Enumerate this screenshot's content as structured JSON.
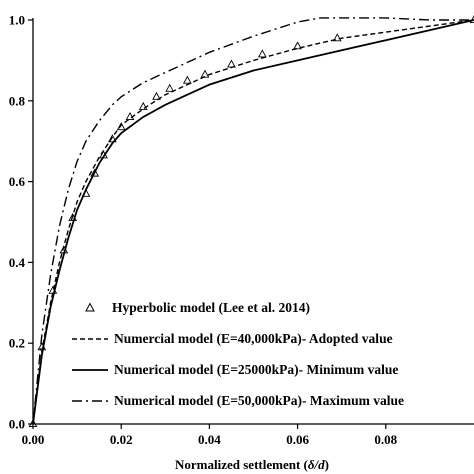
{
  "chart_data": {
    "type": "line",
    "title": "",
    "xlabel_parts": [
      "Normalized settlement (",
      "δ/d",
      ")"
    ],
    "ylabel": "",
    "xlim": [
      0,
      0.1
    ],
    "ylim": [
      0,
      1.0
    ],
    "x_ticks": [
      0,
      0.02,
      0.04,
      0.06,
      0.08
    ],
    "x_tick_labels": [
      "0.00",
      "0.02",
      "0.04",
      "0.06",
      "0.08"
    ],
    "y_ticks": [
      0,
      0.2,
      0.4,
      0.6,
      0.8,
      1.0
    ],
    "y_tick_labels": [
      "0.0",
      "0.2",
      "0.4",
      "0.6",
      "0.8",
      "1.0"
    ],
    "grid": false,
    "legend_position": "bottom-right",
    "series": [
      {
        "name": "Hyperbolic model (Lee et al. 2014)",
        "style": "triangle-markers",
        "x": [
          0,
          0.002,
          0.0045,
          0.007,
          0.009,
          0.012,
          0.014,
          0.016,
          0.018,
          0.02,
          0.022,
          0.025,
          0.028,
          0.031,
          0.035,
          0.039,
          0.045,
          0.052,
          0.06,
          0.069,
          0.1
        ],
        "y": [
          0,
          0.19,
          0.33,
          0.43,
          0.51,
          0.57,
          0.62,
          0.665,
          0.705,
          0.735,
          0.76,
          0.785,
          0.81,
          0.83,
          0.85,
          0.865,
          0.89,
          0.915,
          0.935,
          0.955,
          1.0
        ]
      },
      {
        "name": "Numercial model (E=40,000kPa)- Adopted value",
        "style": "dashed",
        "x": [
          0,
          0.002,
          0.004,
          0.006,
          0.008,
          0.01,
          0.012,
          0.015,
          0.018,
          0.02,
          0.025,
          0.03,
          0.035,
          0.04,
          0.05,
          0.06,
          0.07,
          0.08,
          0.09,
          0.1
        ],
        "y": [
          0,
          0.18,
          0.3,
          0.4,
          0.48,
          0.55,
          0.6,
          0.66,
          0.71,
          0.74,
          0.78,
          0.815,
          0.84,
          0.865,
          0.9,
          0.93,
          0.955,
          0.97,
          0.985,
          1.0
        ]
      },
      {
        "name": "Numerical model (E=25000kPa)- Minimum value",
        "style": "solid",
        "x": [
          0,
          0.002,
          0.004,
          0.006,
          0.008,
          0.01,
          0.012,
          0.015,
          0.018,
          0.02,
          0.025,
          0.03,
          0.035,
          0.04,
          0.05,
          0.06,
          0.07,
          0.08,
          0.09,
          0.1
        ],
        "y": [
          0,
          0.17,
          0.29,
          0.38,
          0.46,
          0.53,
          0.58,
          0.645,
          0.695,
          0.72,
          0.76,
          0.79,
          0.815,
          0.84,
          0.875,
          0.9,
          0.925,
          0.95,
          0.975,
          1.0
        ]
      },
      {
        "name": "Numerical model (E=50,000kPa)- Maximum value",
        "style": "dashdot",
        "x": [
          0,
          0.002,
          0.004,
          0.006,
          0.008,
          0.01,
          0.012,
          0.015,
          0.018,
          0.02,
          0.025,
          0.03,
          0.035,
          0.04,
          0.05,
          0.06,
          0.065,
          0.07,
          0.08,
          0.09,
          0.1
        ],
        "y": [
          0,
          0.22,
          0.37,
          0.49,
          0.58,
          0.65,
          0.7,
          0.75,
          0.79,
          0.81,
          0.845,
          0.87,
          0.895,
          0.92,
          0.96,
          0.995,
          1.005,
          1.005,
          1.005,
          1.0,
          1.0
        ]
      }
    ]
  }
}
